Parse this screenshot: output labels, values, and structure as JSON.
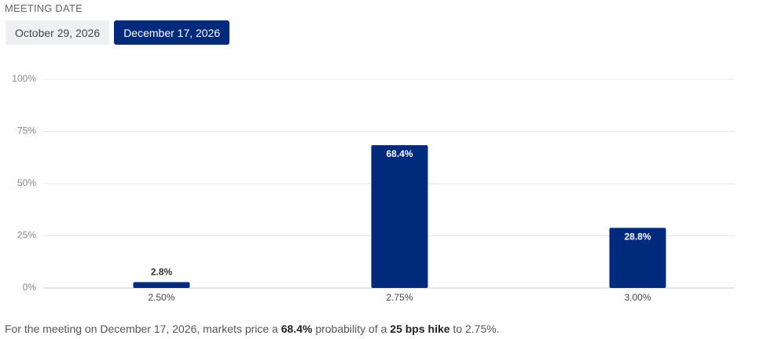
{
  "header": {
    "label": "MEETING DATE"
  },
  "tabs": {
    "items": [
      "October 29, 2026",
      "December 17, 2026"
    ],
    "active": 1
  },
  "chart_data": {
    "type": "bar",
    "categories": [
      "2.50%",
      "2.75%",
      "3.00%"
    ],
    "values": [
      2.8,
      68.4,
      28.8
    ],
    "value_labels": [
      "2.8%",
      "68.4%",
      "28.8%"
    ],
    "color": "#002a7c",
    "ylim": [
      0,
      100
    ],
    "yticks": [
      {
        "value": 0,
        "label": "0%"
      },
      {
        "value": 25,
        "label": "25%"
      },
      {
        "value": 50,
        "label": "50%"
      },
      {
        "value": 75,
        "label": "75%"
      },
      {
        "value": 100,
        "label": "100%"
      }
    ],
    "grid": true
  },
  "footer": {
    "segments": [
      {
        "text": "For the meeting on December 17, 2026, markets price a ",
        "bold": false
      },
      {
        "text": "68.4%",
        "bold": true
      },
      {
        "text": " probability of a ",
        "bold": false
      },
      {
        "text": "25 bps hike",
        "bold": true
      },
      {
        "text": " to 2.75%.",
        "bold": false
      }
    ]
  }
}
